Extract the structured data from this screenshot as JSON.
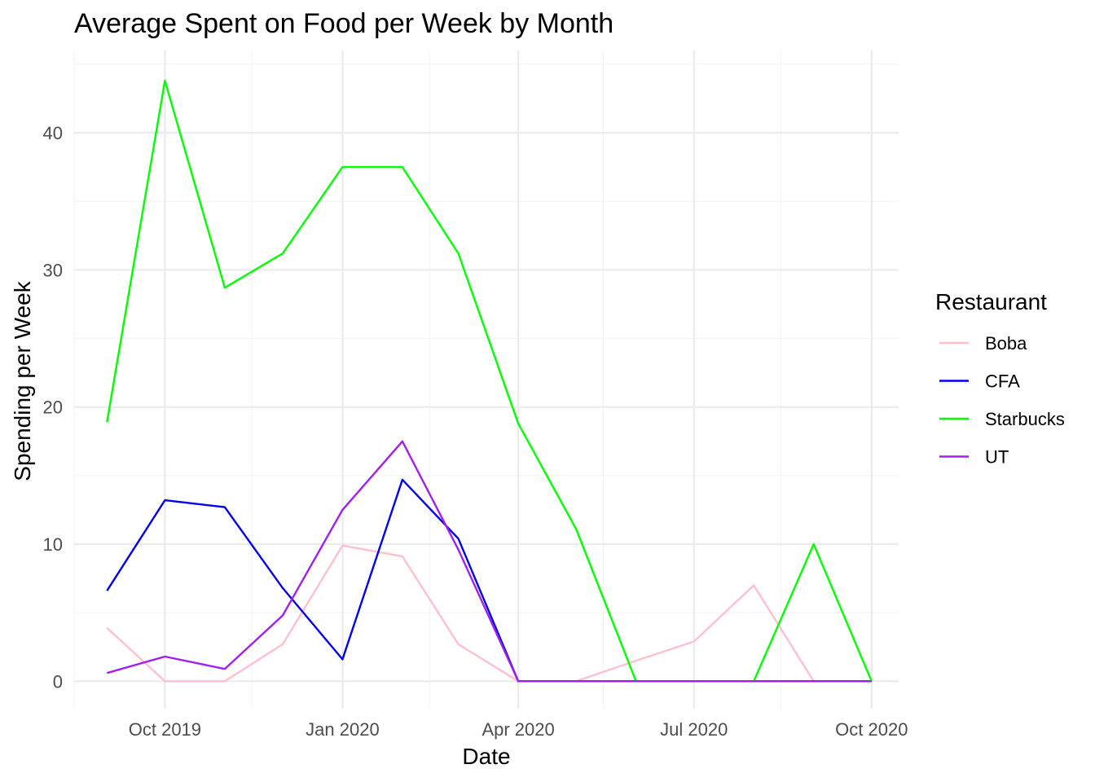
{
  "chart_data": {
    "type": "line",
    "title": "Average Spent on Food per Week by Month",
    "xlabel": "Date",
    "ylabel": "Spending per Week",
    "x": [
      "2019-09-01",
      "2019-10-01",
      "2019-11-01",
      "2019-12-01",
      "2020-01-01",
      "2020-02-01",
      "2020-03-01",
      "2020-04-01",
      "2020-05-01",
      "2020-06-01",
      "2020-07-01",
      "2020-08-01",
      "2020-09-01",
      "2020-10-01"
    ],
    "x_ticks": [
      {
        "date": "2019-10-01",
        "label": "Oct 2019"
      },
      {
        "date": "2020-01-01",
        "label": "Jan 2020"
      },
      {
        "date": "2020-04-01",
        "label": "Apr 2020"
      },
      {
        "date": "2020-07-01",
        "label": "Jul 2020"
      },
      {
        "date": "2020-10-01",
        "label": "Oct 2020"
      }
    ],
    "x_minor_ticks": [
      "2019-08-15",
      "2019-11-15",
      "2020-02-15",
      "2020-05-15",
      "2020-08-15"
    ],
    "xlim": [
      "2019-08-15",
      "2020-10-15"
    ],
    "y_ticks": [
      0,
      10,
      20,
      30,
      40
    ],
    "ylim": [
      -2,
      46
    ],
    "grid": true,
    "legend_title": "Restaurant",
    "legend_position": "right",
    "series": [
      {
        "name": "Boba",
        "color": "#ffc0cb",
        "values": [
          3.9,
          0,
          0,
          2.7,
          9.9,
          9.1,
          2.7,
          0,
          0,
          1.5,
          2.9,
          7.0,
          0,
          0
        ]
      },
      {
        "name": "CFA",
        "color": "#0000ee",
        "values": [
          6.6,
          13.2,
          12.7,
          6.8,
          1.6,
          14.7,
          10.4,
          0,
          0,
          0,
          0,
          0,
          0,
          0
        ]
      },
      {
        "name": "Starbucks",
        "color": "#00ff00",
        "values": [
          18.9,
          43.8,
          28.7,
          31.2,
          37.5,
          37.5,
          31.2,
          18.8,
          11.1,
          0,
          0,
          0,
          10.0,
          0
        ]
      },
      {
        "name": "UT",
        "color": "#a020f0",
        "values": [
          0.6,
          1.8,
          0.9,
          4.8,
          12.5,
          17.5,
          9.6,
          0,
          0,
          0,
          0,
          0,
          0,
          0
        ]
      }
    ]
  }
}
